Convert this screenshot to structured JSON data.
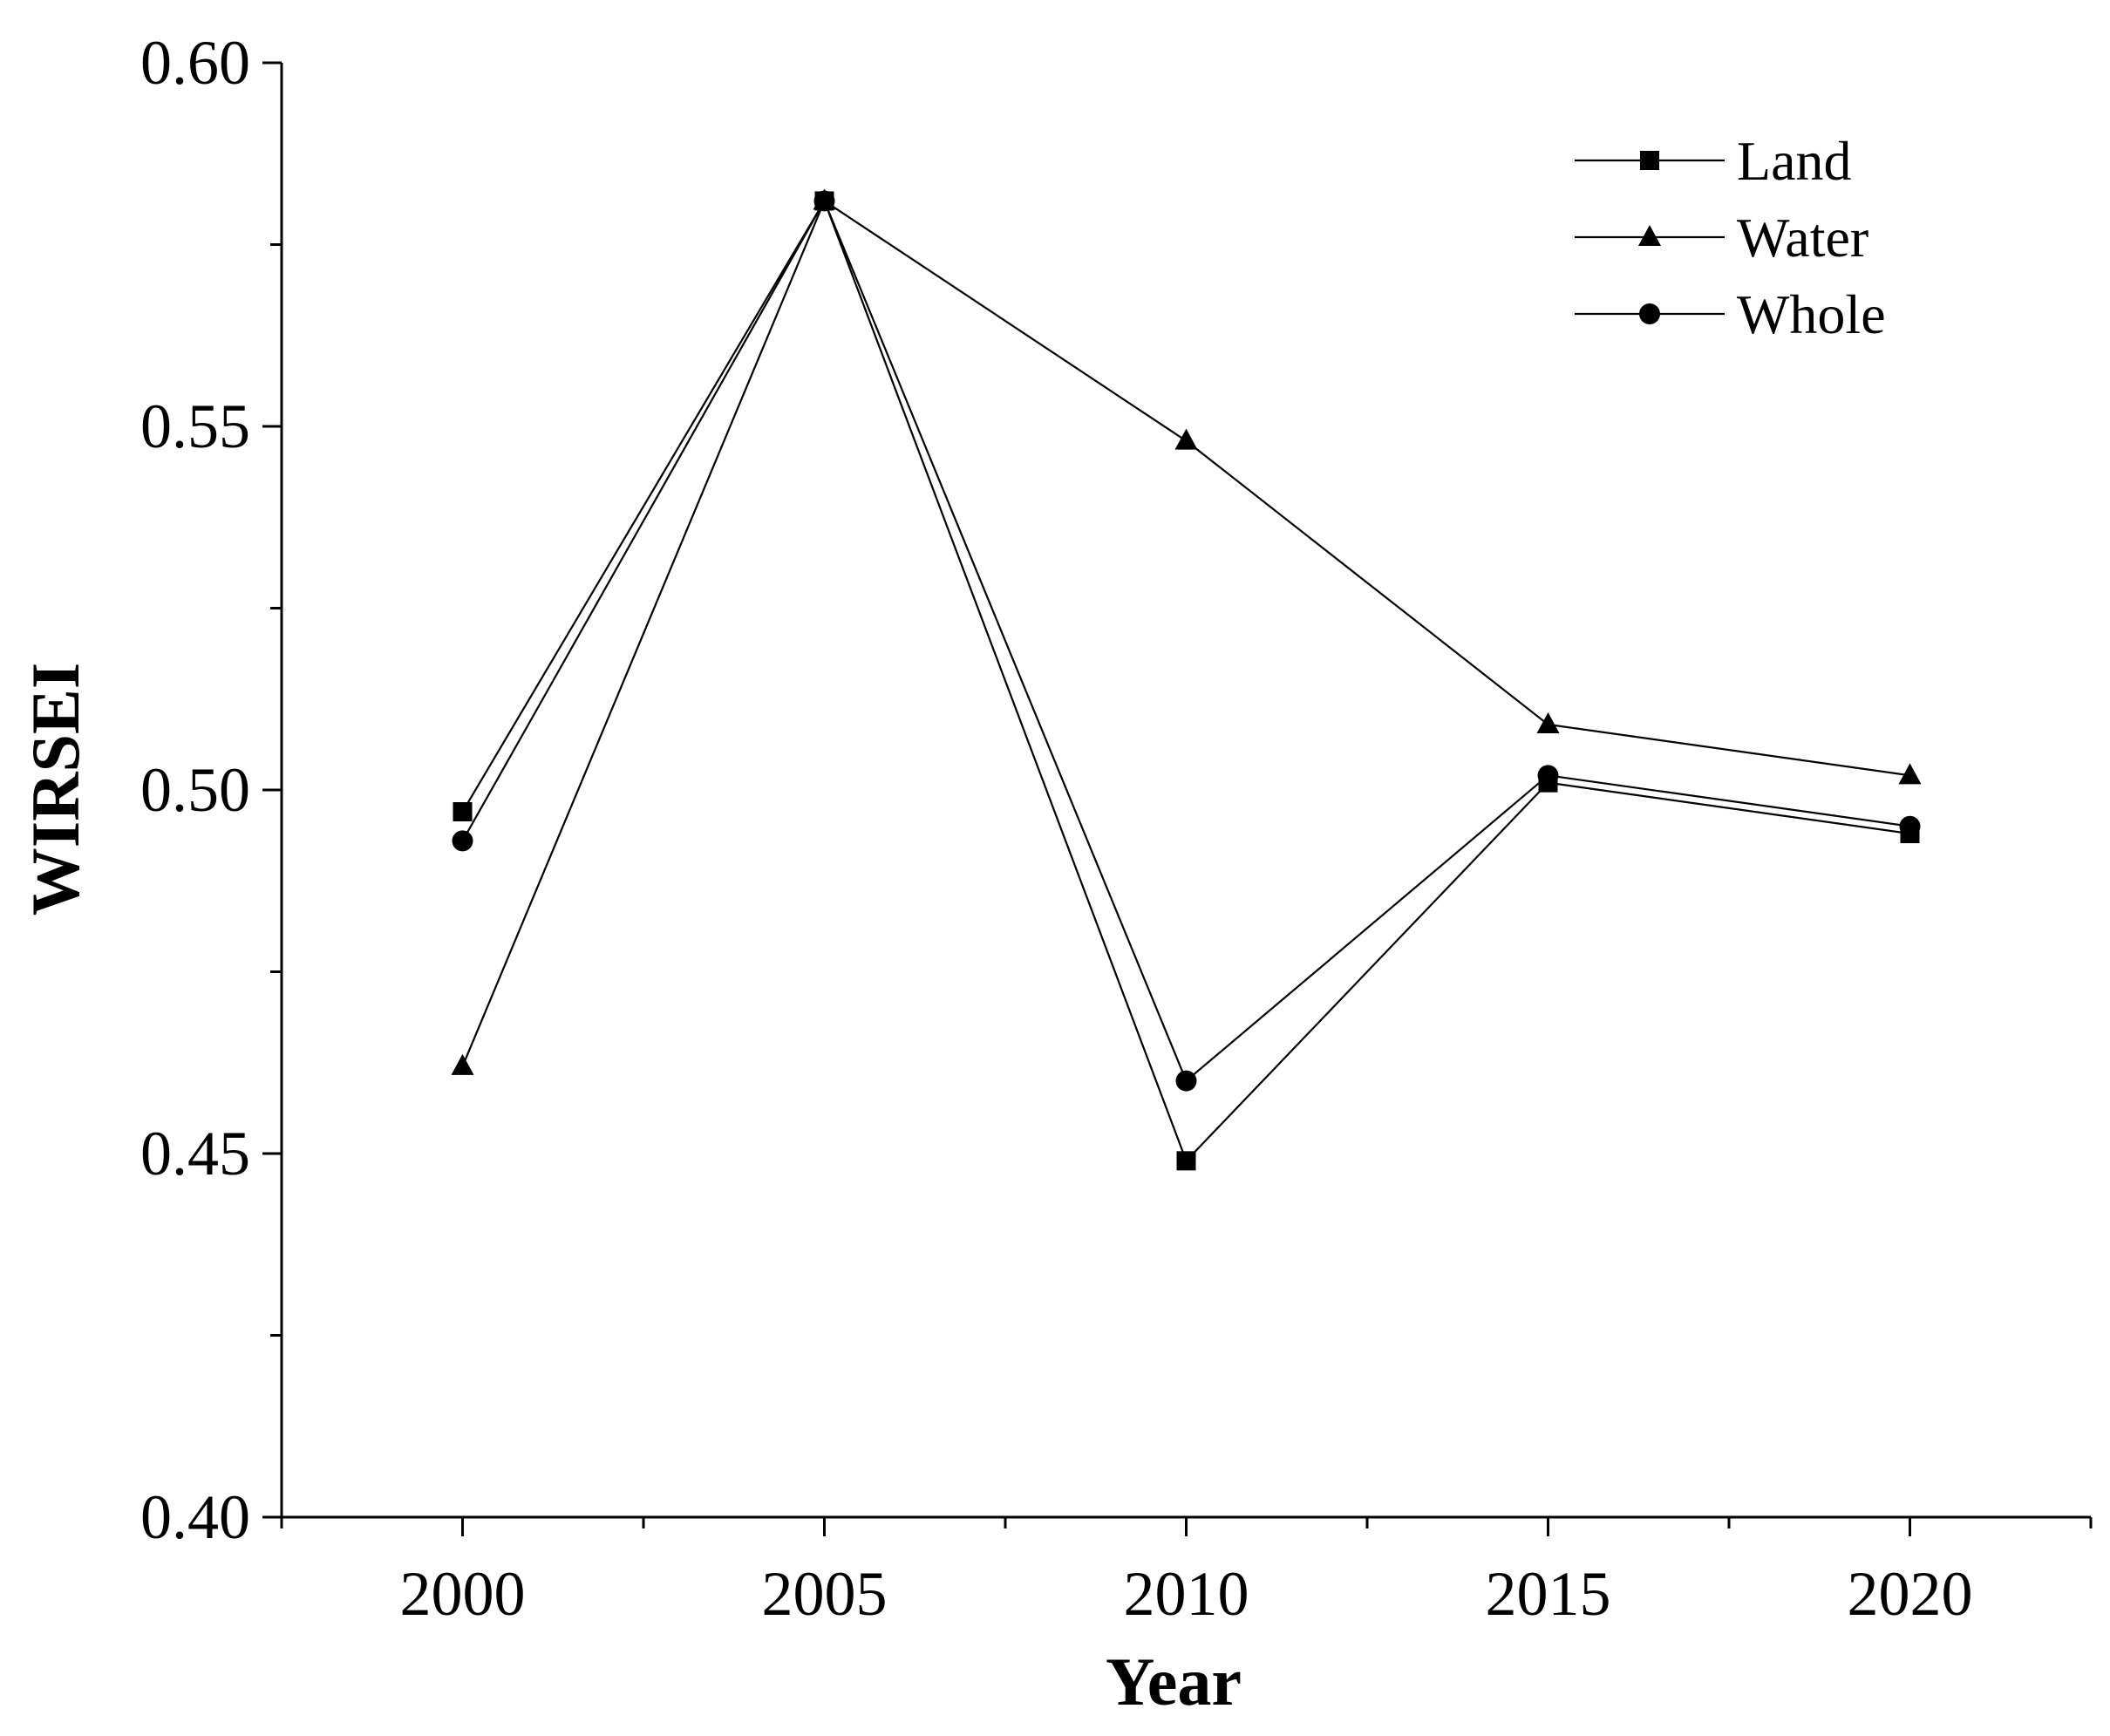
{
  "chart_data": {
    "type": "line",
    "title": "",
    "xlabel": "Year",
    "ylabel": "WIRSEI",
    "categories": [
      "2000",
      "2005",
      "2010",
      "2015",
      "2020"
    ],
    "x": [
      2000,
      2005,
      2010,
      2015,
      2020
    ],
    "xlim": [
      1997.5,
      2022.5
    ],
    "ylim": [
      0.4,
      0.6
    ],
    "yticks": [
      0.4,
      0.45,
      0.5,
      0.55,
      0.6
    ],
    "ytick_labels": [
      "0.40",
      "0.45",
      "0.50",
      "0.55",
      "0.60"
    ],
    "grid": false,
    "legend_position": "top-right",
    "series": [
      {
        "name": "Land",
        "marker": "square",
        "values": [
          0.497,
          0.581,
          0.449,
          0.501,
          0.494
        ]
      },
      {
        "name": "Water",
        "marker": "triangle",
        "values": [
          0.462,
          0.581,
          0.548,
          0.509,
          0.502
        ]
      },
      {
        "name": "Whole",
        "marker": "circle",
        "values": [
          0.493,
          0.581,
          0.46,
          0.502,
          0.495
        ]
      }
    ],
    "colors": {
      "line": "#000000",
      "marker": "#000000",
      "axis": "#000000"
    }
  }
}
